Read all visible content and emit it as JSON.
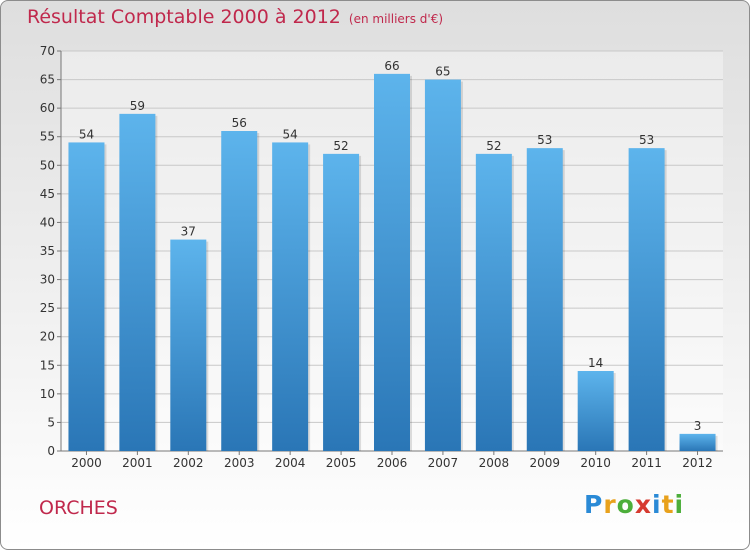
{
  "title": "Résultat Comptable 2000 à 2012",
  "unit_note": "(en milliers d'€)",
  "place_name": "ORCHES",
  "logo": [
    "P",
    "r",
    "o",
    "x",
    "i",
    "t",
    "i"
  ],
  "colors": {
    "accent": "#c0284c",
    "bar_light": "#5db4ec",
    "bar_dark": "#2a76b6",
    "logo": [
      "#2a8ad6",
      "#e8a11c",
      "#4cae3a",
      "#d63a2f",
      "#2a8ad6",
      "#e8a11c",
      "#4cae3a"
    ]
  },
  "chart_data": {
    "type": "bar",
    "title": "Résultat Comptable 2000 à 2012",
    "xlabel": "",
    "ylabel": "",
    "categories": [
      "2000",
      "2001",
      "2002",
      "2003",
      "2004",
      "2005",
      "2006",
      "2007",
      "2008",
      "2009",
      "2010",
      "2011",
      "2012"
    ],
    "values": [
      54,
      59,
      37,
      56,
      54,
      52,
      66,
      65,
      52,
      53,
      14,
      53,
      3
    ],
    "ylim": [
      0,
      70
    ],
    "ytick_step": 5,
    "grid": true
  }
}
